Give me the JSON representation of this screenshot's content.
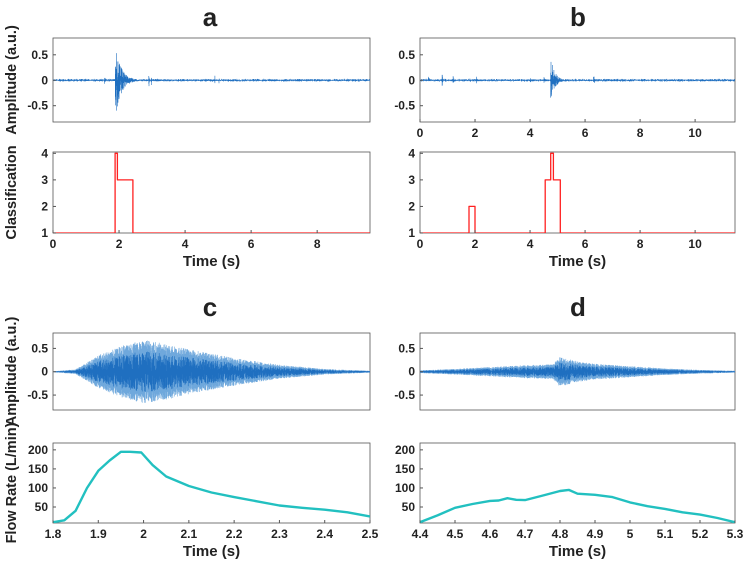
{
  "chart_data": [
    {
      "panel": "a",
      "type": "line",
      "subtype": "waveform",
      "ylabel": "Amplitude (a.u.)",
      "xlim": [
        0,
        9.6
      ],
      "ylim": [
        -0.82,
        0.83
      ],
      "yticks": [
        0.5,
        0,
        -0.5
      ],
      "ytick_labels": [
        "0.5",
        "0",
        "-0.5"
      ],
      "xticks": [
        0,
        2,
        4,
        6,
        8
      ],
      "xtick_labels": [
        "0",
        "2",
        "4",
        "6",
        "8"
      ],
      "show_xticks": false,
      "color": "#1f6fc0",
      "events": [
        {
          "t": 1.88,
          "amp": 0.75,
          "decay": 0.18,
          "dur": 0.6
        },
        {
          "t": 2.9,
          "amp": 0.3,
          "decay": 0.01,
          "dur": 0.03
        },
        {
          "t": 2.97,
          "amp": 0.2,
          "decay": 0.01,
          "dur": 0.03
        },
        {
          "t": 1.55,
          "amp": 0.08,
          "decay": 0.05,
          "dur": 0.1
        },
        {
          "t": 4.9,
          "amp": 0.12,
          "decay": 0.01,
          "dur": 0.03
        },
        {
          "t": 5.02,
          "amp": 0.2,
          "decay": 0.01,
          "dur": 0.03
        },
        {
          "t": 8.0,
          "amp": 0.05,
          "decay": 0.01,
          "dur": 0.03
        }
      ],
      "noise": 0.02
    },
    {
      "panel": "a",
      "type": "line",
      "subtype": "step",
      "ylabel": "Classification",
      "xlabel": "Time (s)",
      "xlim": [
        0,
        9.6
      ],
      "ylim": [
        1,
        4.05
      ],
      "yticks": [
        1,
        2,
        3,
        4
      ],
      "ytick_labels": [
        "1",
        "2",
        "3",
        "4"
      ],
      "xticks": [
        0,
        2,
        4,
        6,
        8
      ],
      "xtick_labels": [
        "0",
        "2",
        "4",
        "6",
        "8"
      ],
      "color": "#ff2020",
      "x": [
        0,
        1.88,
        1.88,
        1.95,
        1.95,
        2.42,
        2.42,
        9.6
      ],
      "y": [
        1,
        1,
        4,
        4,
        3,
        3,
        1,
        1
      ]
    },
    {
      "panel": "b",
      "type": "line",
      "subtype": "waveform",
      "xlim": [
        0,
        11.45
      ],
      "ylim": [
        -0.82,
        0.83
      ],
      "yticks": [
        0.5,
        0,
        -0.5
      ],
      "ytick_labels": [
        "0.5",
        "0",
        "-0.5"
      ],
      "xticks": [
        0,
        2,
        4,
        6,
        8,
        10
      ],
      "xtick_labels": [
        "0",
        "2",
        "4",
        "6",
        "8",
        "10"
      ],
      "show_xticks": true,
      "color": "#1f6fc0",
      "events": [
        {
          "t": 0.3,
          "amp": 0.08,
          "decay": 0.05,
          "dur": 0.15
        },
        {
          "t": 0.8,
          "amp": 0.2,
          "decay": 0.02,
          "dur": 0.05
        },
        {
          "t": 1.2,
          "amp": 0.1,
          "decay": 0.03,
          "dur": 0.1
        },
        {
          "t": 1.8,
          "amp": 0.12,
          "decay": 0.03,
          "dur": 0.1
        },
        {
          "t": 2.05,
          "amp": 0.08,
          "decay": 0.03,
          "dur": 0.08
        },
        {
          "t": 4.0,
          "amp": 0.12,
          "decay": 0.02,
          "dur": 0.05
        },
        {
          "t": 4.5,
          "amp": 0.1,
          "decay": 0.05,
          "dur": 0.2
        },
        {
          "t": 4.75,
          "amp": 0.45,
          "decay": 0.15,
          "dur": 0.5
        },
        {
          "t": 6.3,
          "amp": 0.15,
          "decay": 0.04,
          "dur": 0.1
        },
        {
          "t": 7.6,
          "amp": 0.06,
          "decay": 0.02,
          "dur": 0.05
        },
        {
          "t": 10.6,
          "amp": 0.05,
          "decay": 0.02,
          "dur": 0.05
        }
      ],
      "noise": 0.02
    },
    {
      "panel": "b",
      "type": "line",
      "subtype": "step",
      "xlabel": "Time (s)",
      "xlim": [
        0,
        11.45
      ],
      "ylim": [
        1,
        4.05
      ],
      "yticks": [
        1,
        2,
        3,
        4
      ],
      "ytick_labels": [
        "1",
        "2",
        "3",
        "4"
      ],
      "xticks": [
        0,
        2,
        4,
        6,
        8,
        10
      ],
      "xtick_labels": [
        "0",
        "2",
        "4",
        "6",
        "8",
        "10"
      ],
      "color": "#ff2020",
      "x": [
        0,
        1.78,
        1.78,
        2.0,
        2.0,
        4.55,
        4.55,
        4.75,
        4.75,
        4.85,
        4.85,
        5.1,
        5.1,
        11.45
      ],
      "y": [
        1,
        1,
        2,
        2,
        1,
        1,
        3,
        3,
        4,
        4,
        3,
        3,
        1,
        1
      ]
    },
    {
      "panel": "c",
      "type": "line",
      "subtype": "waveform",
      "ylabel": "Amplitude (a.u.)",
      "xlim": [
        1.8,
        2.5
      ],
      "ylim": [
        -0.82,
        0.83
      ],
      "yticks": [
        0.5,
        0,
        -0.5
      ],
      "ytick_labels": [
        "0.5",
        "0",
        "-0.5"
      ],
      "show_xticks": false,
      "color": "#1f6fc0",
      "outer_color": "#6fa8dc",
      "envelope": {
        "x": [
          1.8,
          1.85,
          1.9,
          1.95,
          2.0,
          2.05,
          2.1,
          2.2,
          2.3,
          2.4,
          2.5
        ],
        "y": [
          0.01,
          0.05,
          0.35,
          0.55,
          0.68,
          0.6,
          0.48,
          0.3,
          0.15,
          0.06,
          0.02
        ]
      }
    },
    {
      "panel": "c",
      "type": "line",
      "ylabel": "Flow Rate (L/min)",
      "xlabel": "Time (s)",
      "xlim": [
        1.8,
        2.5
      ],
      "ylim": [
        8,
        218
      ],
      "yticks": [
        50,
        100,
        150,
        200
      ],
      "ytick_labels": [
        "50",
        "100",
        "150",
        "200"
      ],
      "xticks": [
        1.8,
        1.9,
        2,
        2.1,
        2.2,
        2.3,
        2.4,
        2.5
      ],
      "xtick_labels": [
        "1.8",
        "1.9",
        "2",
        "2.1",
        "2.2",
        "2.3",
        "2.4",
        "2.5"
      ],
      "color": "#22c0c0",
      "x": [
        1.8,
        1.825,
        1.85,
        1.875,
        1.9,
        1.925,
        1.95,
        1.97,
        1.995,
        2.02,
        2.05,
        2.1,
        2.15,
        2.2,
        2.25,
        2.3,
        2.35,
        2.4,
        2.45,
        2.5
      ],
      "y": [
        10,
        15,
        40,
        100,
        145,
        172,
        195,
        195,
        193,
        160,
        130,
        105,
        88,
        76,
        65,
        54,
        48,
        43,
        36,
        25
      ]
    },
    {
      "panel": "d",
      "type": "line",
      "subtype": "waveform",
      "xlim": [
        4.4,
        5.3
      ],
      "ylim": [
        -0.82,
        0.83
      ],
      "yticks": [
        0.5,
        0,
        -0.5
      ],
      "ytick_labels": [
        "0.5",
        "0",
        "-0.5"
      ],
      "show_xticks": false,
      "color": "#1f6fc0",
      "outer_color": "#6fa8dc",
      "envelope": {
        "x": [
          4.4,
          4.5,
          4.6,
          4.7,
          4.78,
          4.8,
          4.85,
          4.9,
          5.0,
          5.1,
          5.2,
          5.3
        ],
        "y": [
          0.03,
          0.06,
          0.1,
          0.14,
          0.16,
          0.32,
          0.22,
          0.17,
          0.12,
          0.07,
          0.04,
          0.02
        ]
      }
    },
    {
      "panel": "d",
      "type": "line",
      "xlabel": "Time (s)",
      "xlim": [
        4.4,
        5.3
      ],
      "ylim": [
        8,
        218
      ],
      "yticks": [
        50,
        100,
        150,
        200
      ],
      "ytick_labels": [
        "50",
        "100",
        "150",
        "200"
      ],
      "xticks": [
        4.4,
        4.5,
        4.6,
        4.7,
        4.8,
        4.9,
        5,
        5.1,
        5.2,
        5.3
      ],
      "xtick_labels": [
        "4.4",
        "4.5",
        "4.6",
        "4.7",
        "4.8",
        "4.9",
        "5",
        "5.1",
        "5.2",
        "5.3"
      ],
      "color": "#22c0c0",
      "x": [
        4.4,
        4.45,
        4.5,
        4.55,
        4.6,
        4.625,
        4.65,
        4.675,
        4.7,
        4.75,
        4.8,
        4.825,
        4.85,
        4.9,
        4.95,
        5.0,
        5.05,
        5.1,
        5.15,
        5.2,
        5.25,
        5.3
      ],
      "y": [
        10,
        28,
        48,
        58,
        66,
        67,
        73,
        69,
        68,
        80,
        92,
        95,
        85,
        82,
        76,
        62,
        52,
        45,
        36,
        30,
        21,
        10
      ]
    }
  ],
  "panel_labels": [
    "a",
    "b",
    "c",
    "d"
  ]
}
